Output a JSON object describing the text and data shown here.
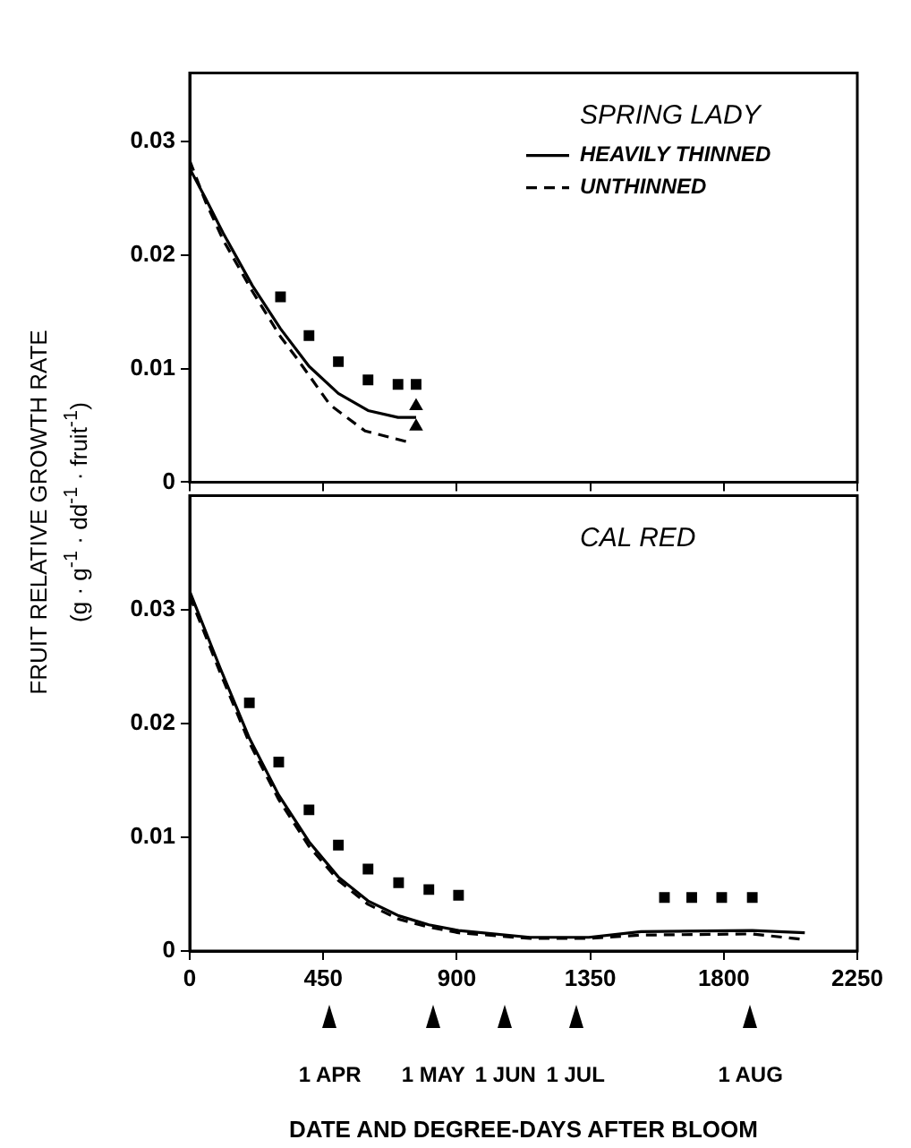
{
  "chart_data": [
    {
      "type": "line",
      "title": "SPRING LADY",
      "ylabel": "FRUIT RELATIVE GROWTH RATE (g · g$^{-1}$ · dd$^{-1}$ · fruit$^{-1}$)",
      "xlim": [
        0,
        2250
      ],
      "xticks": [
        0,
        450,
        900,
        1350,
        1800,
        2250
      ],
      "ylim": [
        0,
        0.036
      ],
      "yticks": [
        0,
        0.01,
        0.02,
        0.03
      ],
      "tick_labels": "y",
      "legend": "top right",
      "series": [
        {
          "name": "HEAVILY THINNED",
          "type": "line",
          "line_style": "solid",
          "color": "#000000",
          "x": [
            0,
            53,
            113,
            211,
            306,
            402,
            501,
            601,
            702,
            763
          ],
          "values": [
            0.0276,
            0.025,
            0.0219,
            0.0173,
            0.0135,
            0.0102,
            0.0078,
            0.0063,
            0.0057,
            0.0057
          ]
        },
        {
          "name": "UNTHINNED",
          "type": "line",
          "line_style": "dashed",
          "color": "#000000",
          "x": [
            0,
            53,
            113,
            211,
            306,
            361,
            473,
            591,
            741
          ],
          "values": [
            0.0283,
            0.0247,
            0.0213,
            0.0168,
            0.0128,
            0.0109,
            0.0068,
            0.0045,
            0.0035
          ]
        },
        {
          "type": "scatter",
          "marker": "square",
          "color": "#000000",
          "x": [
            306,
            402,
            501,
            601,
            702,
            763
          ],
          "values": [
            0.0163,
            0.0129,
            0.0106,
            0.009,
            0.0086,
            0.0086
          ]
        },
        {
          "type": "scatter",
          "marker": "triangle",
          "color": "#000000",
          "x": [
            763,
            763
          ],
          "values": [
            0.0067,
            0.0049
          ]
        }
      ]
    },
    {
      "type": "line",
      "title": "CAL RED",
      "xlabel": "DATE AND DEGREE-DAYS AFTER BLOOM",
      "xlim": [
        0,
        2250
      ],
      "xticks": [
        0,
        450,
        900,
        1350,
        1800,
        2250
      ],
      "ylim": [
        0,
        0.04
      ],
      "yticks": [
        0,
        0.01,
        0.02,
        0.03
      ],
      "annotations": [
        "1 APR",
        "1 MAY",
        "1 JUN",
        "1 JUL",
        "1 AUG"
      ],
      "series": [
        {
          "type": "line",
          "line_style": "solid",
          "color": "#000000",
          "x": [
            0,
            102,
            201,
            300,
            402,
            501,
            601,
            704,
            806,
            906,
            1147,
            1345,
            1521,
            1896,
            2073
          ],
          "values": [
            0.0316,
            0.0249,
            0.0187,
            0.0137,
            0.0096,
            0.0065,
            0.0044,
            0.0031,
            0.0023,
            0.0018,
            0.0012,
            0.0012,
            0.0017,
            0.0018,
            0.0016
          ]
        },
        {
          "type": "line",
          "line_style": "dashed",
          "color": "#000000",
          "x": [
            0,
            102,
            201,
            300,
            402,
            501,
            601,
            704,
            806,
            906,
            1147,
            1345,
            1521,
            1896,
            2073
          ],
          "values": [
            0.0312,
            0.0245,
            0.0183,
            0.0133,
            0.0092,
            0.0062,
            0.0041,
            0.0028,
            0.0021,
            0.0016,
            0.0011,
            0.0011,
            0.0014,
            0.0015,
            0.001
          ]
        },
        {
          "type": "scatter",
          "marker": "square",
          "color": "#000000",
          "x": [
            201,
            300,
            402,
            501,
            601,
            704,
            806,
            906,
            1600,
            1692,
            1793,
            1896
          ],
          "values": [
            0.0218,
            0.0166,
            0.0124,
            0.0093,
            0.0072,
            0.006,
            0.0054,
            0.0049,
            0.0047,
            0.0047,
            0.0047,
            0.0047
          ]
        }
      ]
    }
  ]
}
